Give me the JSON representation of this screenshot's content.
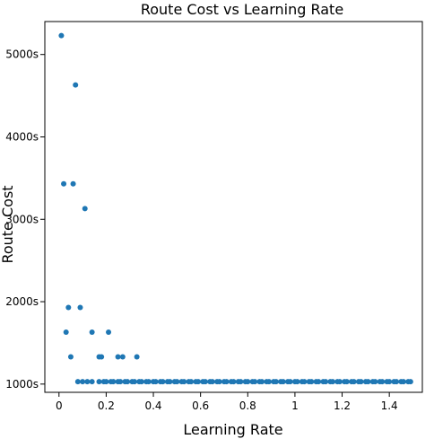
{
  "chart_data": {
    "type": "scatter",
    "title": "Route Cost vs Learning Rate",
    "xlabel": "Learning Rate",
    "ylabel": "Route Cost",
    "xlim": [
      -0.06,
      1.54
    ],
    "ylim": [
      900,
      5400
    ],
    "xticks": [
      0,
      0.2,
      0.4,
      0.6,
      0.8,
      1,
      1.2,
      1.4
    ],
    "xtick_labels": [
      "0",
      "0.2",
      "0.4",
      "0.6",
      "0.8",
      "1",
      "1.2",
      "1.4"
    ],
    "yticks": [
      1000,
      2000,
      3000,
      4000,
      5000
    ],
    "ytick_labels": [
      "1000s",
      "2000s",
      "3000s",
      "4000s",
      "5000s"
    ],
    "grid": false,
    "marker_color": "#1f77b4",
    "series": [
      {
        "points": [
          [
            0.01,
            5230
          ],
          [
            0.07,
            4630
          ],
          [
            0.02,
            3430
          ],
          [
            0.06,
            3430
          ],
          [
            0.11,
            3130
          ],
          [
            0.04,
            1930
          ],
          [
            0.09,
            1930
          ],
          [
            0.03,
            1630
          ],
          [
            0.14,
            1630
          ],
          [
            0.21,
            1630
          ],
          [
            0.05,
            1330
          ],
          [
            0.17,
            1330
          ],
          [
            0.18,
            1330
          ],
          [
            0.25,
            1330
          ],
          [
            0.27,
            1330
          ],
          [
            0.33,
            1330
          ],
          [
            0.08,
            1030
          ],
          [
            0.1,
            1030
          ],
          [
            0.12,
            1030
          ],
          [
            0.14,
            1030
          ],
          [
            0.17,
            1030
          ],
          [
            0.19,
            1030
          ],
          [
            0.2,
            1030
          ],
          [
            0.22,
            1030
          ],
          [
            0.23,
            1030
          ],
          [
            0.25,
            1030
          ],
          [
            0.26,
            1030
          ],
          [
            0.28,
            1030
          ],
          [
            0.29,
            1030
          ],
          [
            0.31,
            1030
          ],
          [
            0.32,
            1030
          ],
          [
            0.34,
            1030
          ],
          [
            0.35,
            1030
          ],
          [
            0.37,
            1030
          ],
          [
            0.38,
            1030
          ],
          [
            0.4,
            1030
          ],
          [
            0.41,
            1030
          ],
          [
            0.43,
            1030
          ],
          [
            0.44,
            1030
          ],
          [
            0.46,
            1030
          ],
          [
            0.47,
            1030
          ],
          [
            0.49,
            1030
          ],
          [
            0.5,
            1030
          ],
          [
            0.52,
            1030
          ],
          [
            0.53,
            1030
          ],
          [
            0.55,
            1030
          ],
          [
            0.56,
            1030
          ],
          [
            0.58,
            1030
          ],
          [
            0.59,
            1030
          ],
          [
            0.61,
            1030
          ],
          [
            0.62,
            1030
          ],
          [
            0.64,
            1030
          ],
          [
            0.65,
            1030
          ],
          [
            0.67,
            1030
          ],
          [
            0.68,
            1030
          ],
          [
            0.7,
            1030
          ],
          [
            0.71,
            1030
          ],
          [
            0.73,
            1030
          ],
          [
            0.74,
            1030
          ],
          [
            0.76,
            1030
          ],
          [
            0.77,
            1030
          ],
          [
            0.79,
            1030
          ],
          [
            0.8,
            1030
          ],
          [
            0.82,
            1030
          ],
          [
            0.83,
            1030
          ],
          [
            0.85,
            1030
          ],
          [
            0.86,
            1030
          ],
          [
            0.88,
            1030
          ],
          [
            0.89,
            1030
          ],
          [
            0.91,
            1030
          ],
          [
            0.92,
            1030
          ],
          [
            0.94,
            1030
          ],
          [
            0.95,
            1030
          ],
          [
            0.97,
            1030
          ],
          [
            0.98,
            1030
          ],
          [
            1.0,
            1030
          ],
          [
            1.01,
            1030
          ],
          [
            1.03,
            1030
          ],
          [
            1.04,
            1030
          ],
          [
            1.06,
            1030
          ],
          [
            1.07,
            1030
          ],
          [
            1.09,
            1030
          ],
          [
            1.1,
            1030
          ],
          [
            1.12,
            1030
          ],
          [
            1.13,
            1030
          ],
          [
            1.15,
            1030
          ],
          [
            1.16,
            1030
          ],
          [
            1.18,
            1030
          ],
          [
            1.19,
            1030
          ],
          [
            1.21,
            1030
          ],
          [
            1.22,
            1030
          ],
          [
            1.24,
            1030
          ],
          [
            1.25,
            1030
          ],
          [
            1.27,
            1030
          ],
          [
            1.28,
            1030
          ],
          [
            1.3,
            1030
          ],
          [
            1.31,
            1030
          ],
          [
            1.33,
            1030
          ],
          [
            1.34,
            1030
          ],
          [
            1.36,
            1030
          ],
          [
            1.37,
            1030
          ],
          [
            1.39,
            1030
          ],
          [
            1.4,
            1030
          ],
          [
            1.42,
            1030
          ],
          [
            1.43,
            1030
          ],
          [
            1.45,
            1030
          ],
          [
            1.46,
            1030
          ],
          [
            1.48,
            1030
          ],
          [
            1.49,
            1030
          ]
        ]
      }
    ]
  }
}
